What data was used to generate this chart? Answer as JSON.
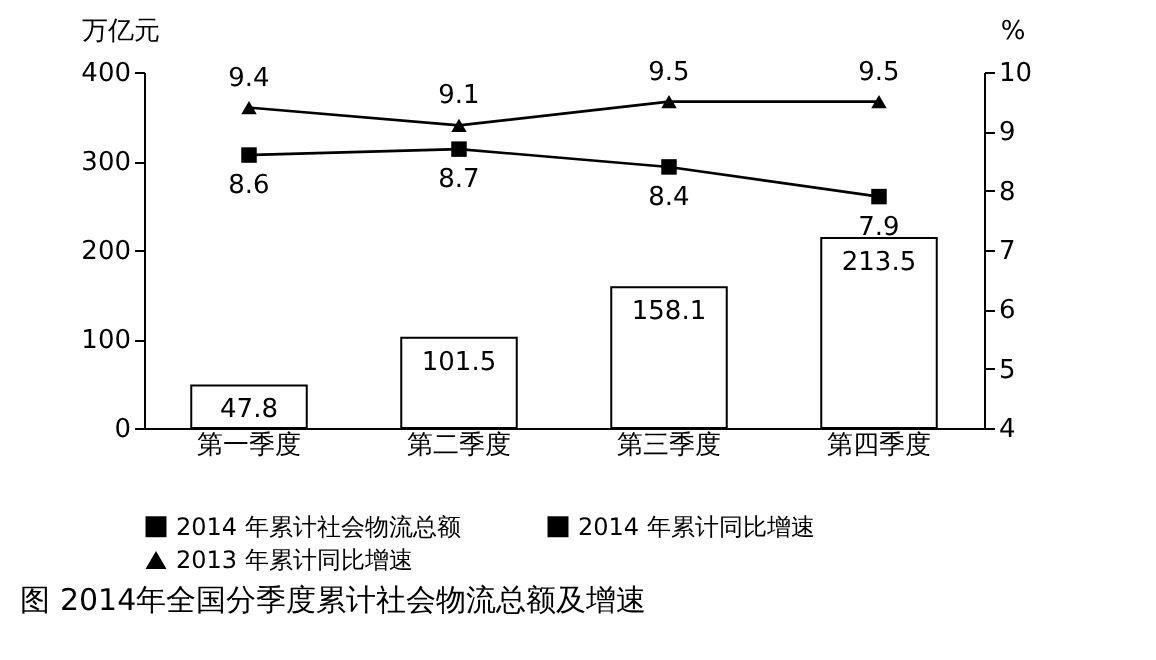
{
  "chart_data": {
    "type": "bar",
    "title": "图 2014年全国分季度累计社会物流总额及增速",
    "ylabel": "万亿元",
    "y2label": "%",
    "categories": [
      "第一季度",
      "第二季度",
      "第三季度",
      "第四季度"
    ],
    "series": [
      {
        "name": "2014 年累计社会物流总额",
        "color": "#ffffff",
        "values": [
          47.8,
          101.5,
          158.1,
          213.5
        ]
      },
      {
        "name": "2014 年累计同比增速",
        "type": "line",
        "axis": "y2",
        "color": "#000000",
        "marker": "square",
        "values": [
          8.6,
          8.7,
          8.4,
          7.9
        ]
      },
      {
        "name": "2013 年累计同比增速",
        "type": "line",
        "axis": "y2",
        "color": "#000000",
        "marker": "triangle",
        "values": [
          9.4,
          9.1,
          9.5,
          9.5
        ]
      }
    ],
    "ylim": [
      0,
      400
    ],
    "yticks": [
      0,
      100,
      200,
      300,
      400
    ],
    "y2lim": [
      4,
      10
    ],
    "y2ticks": [
      4,
      5,
      6,
      7,
      8,
      9,
      10
    ],
    "data_labels": true,
    "grid": false,
    "legend": "bottom"
  }
}
